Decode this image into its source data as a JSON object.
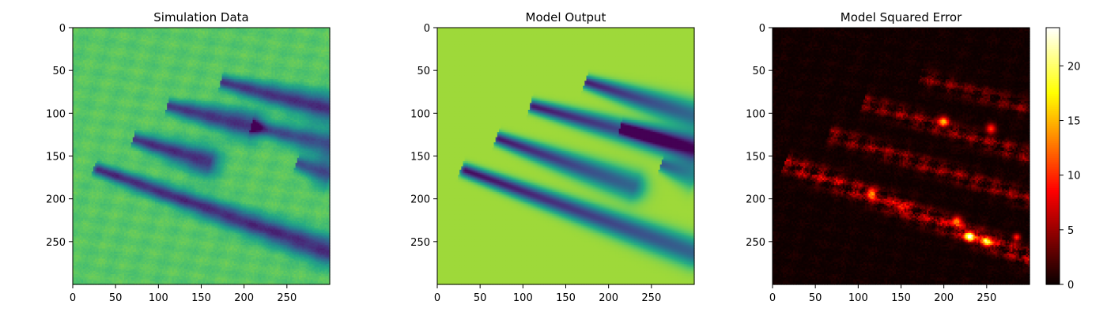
{
  "chart_data": [
    {
      "type": "heatmap",
      "title": "Simulation Data",
      "colormap": "viridis",
      "xlim": [
        0,
        300
      ],
      "ylim": [
        300,
        0
      ],
      "xticks": [
        0,
        50,
        100,
        150,
        200,
        250
      ],
      "yticks": [
        0,
        50,
        100,
        150,
        200,
        250
      ],
      "background_value": 0.74,
      "noise": 0.07,
      "wakes": [
        {
          "x1": 30,
          "y1": 166,
          "x2": 300,
          "y2": 262,
          "w": 5,
          "depth": 0.62
        },
        {
          "x1": 72,
          "y1": 130,
          "x2": 160,
          "y2": 158,
          "w": 5,
          "depth": 0.6
        },
        {
          "x1": 112,
          "y1": 92,
          "x2": 210,
          "y2": 115,
          "w": 5,
          "depth": 0.6
        },
        {
          "x1": 175,
          "y1": 64,
          "x2": 300,
          "y2": 95,
          "w": 5,
          "depth": 0.6
        },
        {
          "x1": 210,
          "y1": 115,
          "x2": 300,
          "y2": 137,
          "w": 5,
          "depth": 0.5
        },
        {
          "x1": 262,
          "y1": 158,
          "x2": 300,
          "y2": 171,
          "w": 5,
          "depth": 0.5
        }
      ]
    },
    {
      "type": "heatmap",
      "title": "Model Output",
      "colormap": "viridis",
      "xlim": [
        0,
        300
      ],
      "ylim": [
        300,
        0
      ],
      "xticks": [
        0,
        50,
        100,
        150,
        200,
        250
      ],
      "yticks": [
        0,
        50,
        100,
        150,
        200,
        250
      ],
      "background_value": 0.86,
      "noise": 0.0,
      "wakes": [
        {
          "x1": 33,
          "y1": 167,
          "x2": 300,
          "y2": 263,
          "w": 5,
          "depth": 0.83
        },
        {
          "x1": 72,
          "y1": 130,
          "x2": 230,
          "y2": 186,
          "w": 5,
          "depth": 0.8
        },
        {
          "x1": 112,
          "y1": 92,
          "x2": 300,
          "y2": 143,
          "w": 5,
          "depth": 0.8
        },
        {
          "x1": 175,
          "y1": 64,
          "x2": 300,
          "y2": 103,
          "w": 5,
          "depth": 0.78
        },
        {
          "x1": 215,
          "y1": 117,
          "x2": 300,
          "y2": 140,
          "w": 5,
          "depth": 0.55
        },
        {
          "x1": 262,
          "y1": 160,
          "x2": 300,
          "y2": 173,
          "w": 5,
          "depth": 0.55
        }
      ]
    },
    {
      "type": "heatmap",
      "title": "Model Squared Error",
      "colormap": "hot",
      "xlim": [
        0,
        300
      ],
      "ylim": [
        300,
        0
      ],
      "xticks": [
        0,
        50,
        100,
        150,
        200,
        250
      ],
      "yticks": [
        0,
        50,
        100,
        150,
        200,
        250
      ],
      "value_range": [
        0,
        23.5
      ],
      "colorbar_ticks": [
        0,
        5,
        10,
        15,
        20
      ],
      "background_value": 0.4,
      "noise": 0.8,
      "wakes": [
        {
          "x1": 20,
          "y1": 160,
          "x2": 300,
          "y2": 268,
          "w": 8,
          "peak": 7
        },
        {
          "x1": 70,
          "y1": 125,
          "x2": 300,
          "y2": 200,
          "w": 7,
          "peak": 5
        },
        {
          "x1": 110,
          "y1": 88,
          "x2": 300,
          "y2": 150,
          "w": 7,
          "peak": 5
        },
        {
          "x1": 175,
          "y1": 58,
          "x2": 300,
          "y2": 95,
          "w": 7,
          "peak": 4
        }
      ],
      "hotspots": [
        {
          "x": 230,
          "y": 244,
          "r": 4,
          "v": 23
        },
        {
          "x": 250,
          "y": 250,
          "r": 4,
          "v": 18
        },
        {
          "x": 200,
          "y": 110,
          "r": 4,
          "v": 14
        },
        {
          "x": 215,
          "y": 226,
          "r": 4,
          "v": 12
        },
        {
          "x": 255,
          "y": 118,
          "r": 4,
          "v": 10
        },
        {
          "x": 115,
          "y": 193,
          "r": 4,
          "v": 10
        },
        {
          "x": 150,
          "y": 210,
          "r": 4,
          "v": 8
        },
        {
          "x": 285,
          "y": 245,
          "r": 3,
          "v": 9
        }
      ]
    }
  ]
}
